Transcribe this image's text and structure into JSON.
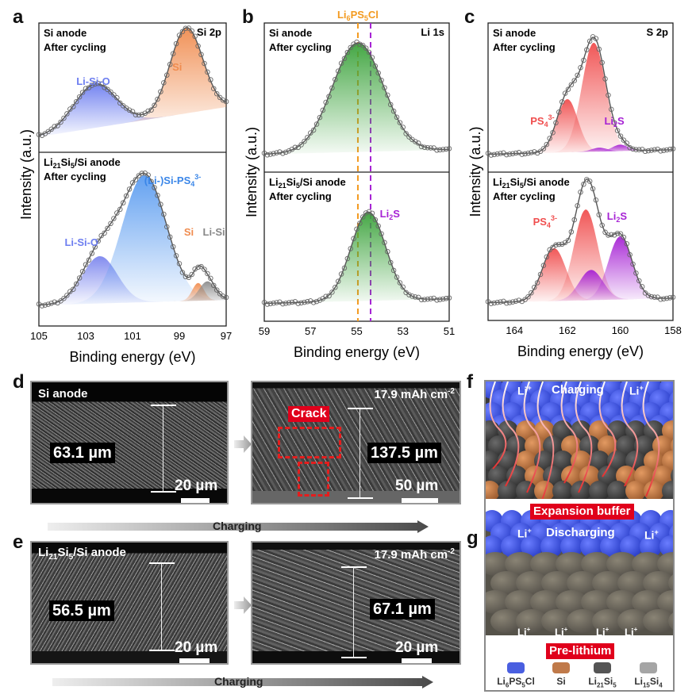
{
  "panels": {
    "a": {
      "letter": "a"
    },
    "b": {
      "letter": "b"
    },
    "c": {
      "letter": "c"
    },
    "d": {
      "letter": "d"
    },
    "e": {
      "letter": "e"
    },
    "f": {
      "letter": "f"
    },
    "g": {
      "letter": "g"
    }
  },
  "chart_data": [
    {
      "id": "a",
      "type": "line",
      "title": "Si 2p",
      "xlabel": "Binding energy (eV)",
      "ylabel": "Intensity (a.u.)",
      "xlim": [
        105,
        97
      ],
      "xticks": [
        "105",
        "103",
        "101",
        "99",
        "97"
      ],
      "subplots": [
        {
          "sample": "Si anode",
          "condition": "After cycling",
          "peaks": [
            {
              "name": "Li-Si-O",
              "center": 102.6,
              "height": 0.4,
              "width": 0.9,
              "color": "#6d7ef0"
            },
            {
              "name": "Si",
              "center": 98.7,
              "height": 0.78,
              "width": 0.7,
              "color": "#f08c4f"
            }
          ],
          "labels": [
            {
              "text": "Li-Si-O",
              "color": "#6d7ef0"
            },
            {
              "text": "Si",
              "color": "#f08c4f"
            }
          ]
        },
        {
          "sample": "Li21Si5/Si anode",
          "condition": "After cycling",
          "peaks": [
            {
              "name": "Li-Si-O",
              "center": 102.4,
              "height": 0.32,
              "width": 0.75,
              "color": "#7c86ee"
            },
            {
              "name": "(Li-)Si-PS4 3-",
              "center": 100.5,
              "height": 0.86,
              "width": 0.95,
              "color": "#5b9cf0"
            },
            {
              "name": "Si",
              "center": 98.2,
              "height": 0.12,
              "width": 0.25,
              "color": "#f08c4f"
            },
            {
              "name": "Li-Si",
              "center": 97.8,
              "height": 0.13,
              "width": 0.35,
              "color": "#8a8a8a"
            }
          ],
          "labels": [
            {
              "text": "Li-Si-O",
              "color": "#6d7ef0"
            },
            {
              "text": "(Li-)Si-PS",
              "sub": "4",
              "sup": "3-",
              "color": "#3a86e8"
            },
            {
              "text": "Si",
              "color": "#f08c4f"
            },
            {
              "text": "Li-Si",
              "color": "#888888"
            }
          ]
        }
      ]
    },
    {
      "id": "b",
      "type": "line",
      "title": "Li 1s",
      "xlabel": "Binding energy (eV)",
      "ylabel": "Intensity (a.u.)",
      "xlim": [
        59,
        51
      ],
      "xticks": [
        "59",
        "57",
        "55",
        "53",
        "51"
      ],
      "reference_lines": [
        {
          "name": "Li6PS5Cl",
          "x": 54.95,
          "color": "#f39a1f"
        },
        {
          "name": "Li2S",
          "x": 54.4,
          "color": "#a622d4"
        }
      ],
      "subplots": [
        {
          "sample": "Si anode",
          "condition": "After cycling",
          "peaks": [
            {
              "name": "Li1s",
              "center": 54.95,
              "height": 0.86,
              "width": 1.1,
              "color": "#3aa23a"
            }
          ]
        },
        {
          "sample": "Li21Si5/Si anode",
          "condition": "After cycling",
          "peaks": [
            {
              "name": "Li2S",
              "center": 54.5,
              "height": 0.7,
              "width": 0.75,
              "color": "#3aa23a"
            }
          ],
          "labels": [
            {
              "text": "Li",
              "sub": "2",
              "tail": "S",
              "color": "#a622d4"
            }
          ]
        }
      ]
    },
    {
      "id": "c",
      "type": "line",
      "title": "S 2p",
      "xlabel": "Binding energy (eV)",
      "ylabel": "Intensity (a.u.)",
      "xlim": [
        165,
        158
      ],
      "xticks": [
        "164",
        "162",
        "160",
        "158"
      ],
      "subplots": [
        {
          "sample": "Si anode",
          "condition": "After cycling",
          "peaks": [
            {
              "name": "PS4 3- 2p3/2",
              "center": 161.0,
              "height": 0.86,
              "width": 0.45,
              "color": "#f04e4e"
            },
            {
              "name": "PS4 3- 2p1/2",
              "center": 162.0,
              "height": 0.42,
              "width": 0.4,
              "color": "#f04e4e"
            },
            {
              "name": "Li2S 2p3/2",
              "center": 160.0,
              "height": 0.05,
              "width": 0.3,
              "color": "#a622d4"
            },
            {
              "name": "Li2S 2p1/2",
              "center": 160.8,
              "height": 0.03,
              "width": 0.3,
              "color": "#a622d4"
            }
          ],
          "labels": [
            {
              "text": "PS",
              "sub": "4",
              "sup": "3-",
              "color": "#f04e4e"
            },
            {
              "text": "Li",
              "sub": "2",
              "tail": "S",
              "color": "#a622d4"
            }
          ]
        },
        {
          "sample": "Li21Si5/Si anode",
          "condition": "After cycling",
          "peaks": [
            {
              "name": "PS4 3- 2p1/2",
              "center": 162.5,
              "height": 0.42,
              "width": 0.45,
              "color": "#f04e4e"
            },
            {
              "name": "PS4 3- 2p3/2",
              "center": 161.3,
              "height": 0.72,
              "width": 0.45,
              "color": "#f04e4e"
            },
            {
              "name": "Li2S 2p1/2",
              "center": 161.1,
              "height": 0.24,
              "width": 0.45,
              "color": "#a622d4"
            },
            {
              "name": "Li2S 2p3/2",
              "center": 160.0,
              "height": 0.5,
              "width": 0.45,
              "color": "#a622d4"
            }
          ],
          "labels": [
            {
              "text": "PS",
              "sub": "4",
              "sup": "3-",
              "color": "#f04e4e"
            },
            {
              "text": "Li",
              "sub": "2",
              "tail": "S",
              "color": "#a622d4"
            }
          ]
        }
      ]
    }
  ],
  "sem": {
    "d_left": {
      "label": "Si anode",
      "thickness": "63.1 µm",
      "scale": "20 µm"
    },
    "d_right": {
      "capacity": "17.9 mAh cm",
      "capacity_sup": "-2",
      "thickness": "137.5 µm",
      "scale": "50 µm",
      "crack": "Crack"
    },
    "e_left": {
      "label_pre": "Li",
      "label_sub1": "21",
      "label_mid": "Si",
      "label_sub2": "5",
      "label_post": "/Si anode",
      "thickness": "56.5 µm",
      "scale": "20 µm"
    },
    "e_right": {
      "capacity": "17.9 mAh cm",
      "capacity_sup": "-2",
      "thickness": "67.1 µm",
      "scale": "20 µm"
    },
    "charging_label": "Charging"
  },
  "schematic": {
    "f": {
      "title": "Charging",
      "li_left": "Li",
      "li_right": "Li",
      "plus": "+",
      "tag": "Expansion buffer"
    },
    "g": {
      "title": "Discharging",
      "li_left": "Li",
      "li_right": "Li",
      "li_bottom": [
        "Li",
        "Li",
        "Li",
        "Li"
      ],
      "plus": "+",
      "tag": "Pre-lithium"
    },
    "legend": [
      {
        "pre": "Li",
        "sub1": "6",
        "mid": "PS",
        "sub2": "5",
        "post": "Cl",
        "color": "#4a5fe0"
      },
      {
        "pre": "Si",
        "sub1": "",
        "mid": "",
        "sub2": "",
        "post": "",
        "color": "#c07a4a"
      },
      {
        "pre": "Li",
        "sub1": "21",
        "mid": "Si",
        "sub2": "5",
        "post": "",
        "color": "#555555"
      },
      {
        "pre": "Li",
        "sub1": "15",
        "mid": "Si",
        "sub2": "4",
        "post": "",
        "color": "#a5a5a5"
      }
    ]
  }
}
